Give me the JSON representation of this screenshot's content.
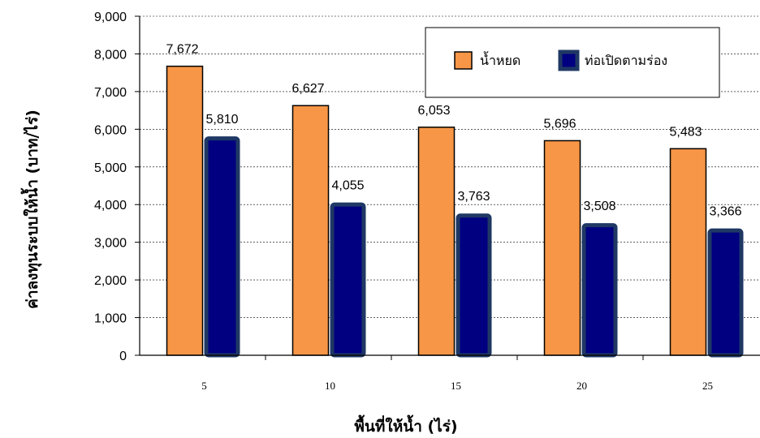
{
  "chart_data": {
    "type": "bar",
    "title": "",
    "xlabel": "พื้นที่ให้น้ำ (ไร่)",
    "ylabel": "ค่าลงทุนระบบให้น้ำ (บาท/ไร่)",
    "categories": [
      "5",
      "10",
      "15",
      "20",
      "25"
    ],
    "series": [
      {
        "name": "น้ำหยด",
        "values": [
          7672,
          6627,
          6053,
          5696,
          5483
        ],
        "labels": [
          "7,672",
          "6,627",
          "6,053",
          "5,696",
          "5,483"
        ],
        "color": "#F79646",
        "border_color": "#000000"
      },
      {
        "name": "ท่อเปิดตามร่อง",
        "values": [
          5810,
          4055,
          3763,
          3508,
          3366
        ],
        "labels": [
          "5,810",
          "4,055",
          "3,763",
          "3,508",
          "3,366"
        ],
        "color": "#000080",
        "border_color": "#1F3864"
      }
    ],
    "ylim": [
      0,
      9000
    ],
    "yticks": [
      0,
      1000,
      2000,
      3000,
      4000,
      5000,
      6000,
      7000,
      8000,
      9000
    ],
    "ytick_labels": [
      "0",
      "1,000",
      "2,000",
      "3,000",
      "4,000",
      "5,000",
      "6,000",
      "7,000",
      "8,000",
      "9,000"
    ],
    "grid": true,
    "grid_style": "dashed",
    "legend_position": "top-right"
  }
}
